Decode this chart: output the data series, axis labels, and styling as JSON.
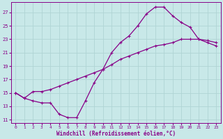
{
  "xlabel": "Windchill (Refroidissement éolien,°C)",
  "bg_color": "#c8e8e8",
  "grid_color": "#b0d4d4",
  "line_color": "#880088",
  "xlim": [
    -0.5,
    23.5
  ],
  "ylim": [
    10.5,
    28.5
  ],
  "xticks": [
    0,
    1,
    2,
    3,
    4,
    5,
    6,
    7,
    8,
    9,
    10,
    11,
    12,
    13,
    14,
    15,
    16,
    17,
    18,
    19,
    20,
    21,
    22,
    23
  ],
  "yticks": [
    11,
    13,
    15,
    17,
    19,
    21,
    23,
    25,
    27
  ],
  "curve1_x": [
    0,
    1,
    2,
    3,
    4,
    5,
    6,
    7,
    8,
    9,
    10,
    11,
    12,
    13,
    14,
    15,
    16,
    17,
    18,
    19,
    20,
    21,
    22,
    23
  ],
  "curve1_y": [
    15,
    14.2,
    13.8,
    13.5,
    13.5,
    11.8,
    11.3,
    11.3,
    13.8,
    16.5,
    18.5,
    21.0,
    22.5,
    23.5,
    25.0,
    26.8,
    27.8,
    27.8,
    26.5,
    25.5,
    24.8,
    23.0,
    22.8,
    22.5
  ],
  "curve2_x": [
    0,
    1,
    2,
    3,
    4,
    5,
    6,
    7,
    8,
    9,
    10,
    11,
    12,
    13,
    14,
    15,
    16,
    17,
    18,
    19,
    20,
    21,
    22,
    23
  ],
  "curve2_y": [
    15,
    14.2,
    15.2,
    15.2,
    15.5,
    16.0,
    16.5,
    17.0,
    17.5,
    18.0,
    18.5,
    19.2,
    20.0,
    20.5,
    21.0,
    21.5,
    22.0,
    22.2,
    22.5,
    23.0,
    23.0,
    23.0,
    22.5,
    22.0
  ],
  "xlabel_fontsize": 5.5,
  "tick_fontsize": 5,
  "line_width": 0.9,
  "marker_size": 3.5
}
